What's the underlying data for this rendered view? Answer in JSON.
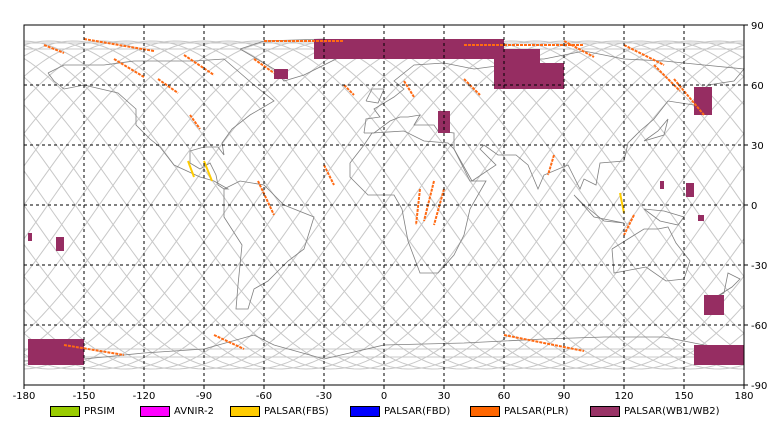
{
  "map": {
    "x_ticks": [
      "-180",
      "-150",
      "-120",
      "-90",
      "-60",
      "-30",
      "0",
      "30",
      "60",
      "90",
      "120",
      "150",
      "180"
    ],
    "y_ticks": [
      "90",
      "60",
      "30",
      "0",
      "-30",
      "-60",
      "-90"
    ],
    "x_range": [
      -180,
      180
    ],
    "y_range": [
      -90,
      90
    ],
    "grid": "dashed",
    "colors": {
      "coast": "#808080",
      "orbit": "#c8c8c8",
      "plr": "#ff6a13",
      "wb": "#962d62",
      "fbs": "#ffcc00"
    }
  },
  "legend": [
    {
      "label": "PRSIM",
      "color": "#99cc00"
    },
    {
      "label": "AVNIR-2",
      "color": "#ff00ff"
    },
    {
      "label": "PALSAR(FBS)",
      "color": "#ffcc00"
    },
    {
      "label": "PALSAR(FBD)",
      "color": "#0000ff"
    },
    {
      "label": "PALSAR(PLR)",
      "color": "#ff6600"
    },
    {
      "label": "PALSAR(WB1/WB2)",
      "color": "#993366"
    }
  ],
  "observations": {
    "wb": [
      {
        "lon": [
          -55,
          -48
        ],
        "lat": [
          63,
          68
        ]
      },
      {
        "lon": [
          27,
          33
        ],
        "lat": [
          36,
          47
        ]
      },
      {
        "lon": [
          -35,
          60
        ],
        "lat": [
          73,
          83
        ]
      },
      {
        "lon": [
          55,
          78
        ],
        "lat": [
          58,
          78
        ]
      },
      {
        "lon": [
          78,
          90
        ],
        "lat": [
          58,
          71
        ]
      },
      {
        "lon": [
          155,
          164
        ],
        "lat": [
          45,
          59
        ]
      },
      {
        "lon": [
          138,
          140
        ],
        "lat": [
          8,
          12
        ]
      },
      {
        "lon": [
          151,
          155
        ],
        "lat": [
          4,
          11
        ]
      },
      {
        "lon": [
          157,
          160
        ],
        "lat": [
          -8,
          -5
        ]
      },
      {
        "lon": [
          -178,
          -176
        ],
        "lat": [
          -18,
          -14
        ]
      },
      {
        "lon": [
          -164,
          -160
        ],
        "lat": [
          -23,
          -16
        ]
      },
      {
        "lon": [
          160,
          170
        ],
        "lat": [
          -55,
          -45
        ]
      },
      {
        "lon": [
          -178,
          -150
        ],
        "lat": [
          -80,
          -67
        ]
      },
      {
        "lon": [
          155,
          180
        ],
        "lat": [
          -80,
          -70
        ]
      }
    ],
    "plr_arcs": [
      {
        "from": [
          -150,
          83
        ],
        "to": [
          -115,
          77
        ]
      },
      {
        "from": [
          -135,
          73
        ],
        "to": [
          -120,
          64
        ]
      },
      {
        "from": [
          -100,
          75
        ],
        "to": [
          -85,
          65
        ]
      },
      {
        "from": [
          -65,
          73
        ],
        "to": [
          -55,
          66
        ]
      },
      {
        "from": [
          -20,
          60
        ],
        "to": [
          -15,
          55
        ]
      },
      {
        "from": [
          -60,
          82
        ],
        "to": [
          -20,
          82
        ]
      },
      {
        "from": [
          10,
          62
        ],
        "to": [
          15,
          54
        ]
      },
      {
        "from": [
          40,
          80
        ],
        "to": [
          100,
          80
        ]
      },
      {
        "from": [
          120,
          80
        ],
        "to": [
          140,
          70
        ]
      },
      {
        "from": [
          145,
          63
        ],
        "to": [
          160,
          45
        ]
      },
      {
        "from": [
          40,
          63
        ],
        "to": [
          48,
          55
        ]
      },
      {
        "from": [
          90,
          82
        ],
        "to": [
          105,
          74
        ]
      },
      {
        "from": [
          135,
          70
        ],
        "to": [
          148,
          57
        ]
      },
      {
        "from": [
          -170,
          80
        ],
        "to": [
          -160,
          76
        ]
      },
      {
        "from": [
          -113,
          63
        ],
        "to": [
          -103,
          56
        ]
      },
      {
        "from": [
          25,
          12
        ],
        "to": [
          20,
          -8
        ]
      },
      {
        "from": [
          30,
          8
        ],
        "to": [
          25,
          -10
        ]
      },
      {
        "from": [
          18,
          8
        ],
        "to": [
          16,
          -10
        ]
      },
      {
        "from": [
          -63,
          12
        ],
        "to": [
          -55,
          -5
        ]
      },
      {
        "from": [
          -30,
          20
        ],
        "to": [
          -25,
          10
        ]
      },
      {
        "from": [
          -97,
          45
        ],
        "to": [
          -92,
          38
        ]
      },
      {
        "from": [
          125,
          -5
        ],
        "to": [
          120,
          -15
        ]
      },
      {
        "from": [
          85,
          25
        ],
        "to": [
          82,
          15
        ]
      },
      {
        "from": [
          60,
          -65
        ],
        "to": [
          100,
          -73
        ]
      },
      {
        "from": [
          -160,
          -70
        ],
        "to": [
          -130,
          -75
        ]
      },
      {
        "from": [
          -85,
          -65
        ],
        "to": [
          -70,
          -72
        ]
      }
    ],
    "fbs": [
      {
        "from": [
          -98,
          22
        ],
        "to": [
          -95,
          14
        ]
      },
      {
        "from": [
          -90,
          22
        ],
        "to": [
          -86,
          12
        ]
      },
      {
        "from": [
          118,
          6
        ],
        "to": [
          120,
          -4
        ]
      }
    ]
  }
}
